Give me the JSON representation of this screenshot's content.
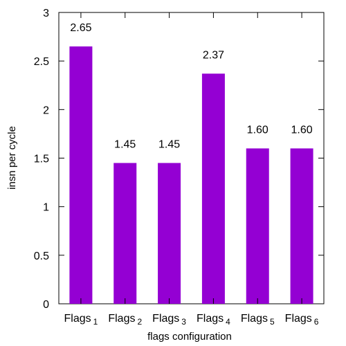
{
  "chart_data": {
    "type": "bar",
    "categories": [
      {
        "base": "Flags",
        "sub": "1"
      },
      {
        "base": "Flags",
        "sub": "2"
      },
      {
        "base": "Flags",
        "sub": "3"
      },
      {
        "base": "Flags",
        "sub": "4"
      },
      {
        "base": "Flags",
        "sub": "5"
      },
      {
        "base": "Flags",
        "sub": "6"
      }
    ],
    "values": [
      2.65,
      1.45,
      1.45,
      2.37,
      1.6,
      1.6
    ],
    "data_labels": [
      "2.65",
      "1.45",
      "1.45",
      "2.37",
      "1.60",
      "1.60"
    ],
    "xlabel": "flags configuration",
    "ylabel": "insn per cycle",
    "ylim": [
      0,
      3
    ],
    "yticks": [
      0,
      0.5,
      1,
      1.5,
      2,
      2.5,
      3
    ],
    "ytick_labels": [
      "0",
      "0.5",
      "1",
      "1.5",
      "2",
      "2.5",
      "3"
    ],
    "bar_color": "#9400D3",
    "grid": false
  }
}
